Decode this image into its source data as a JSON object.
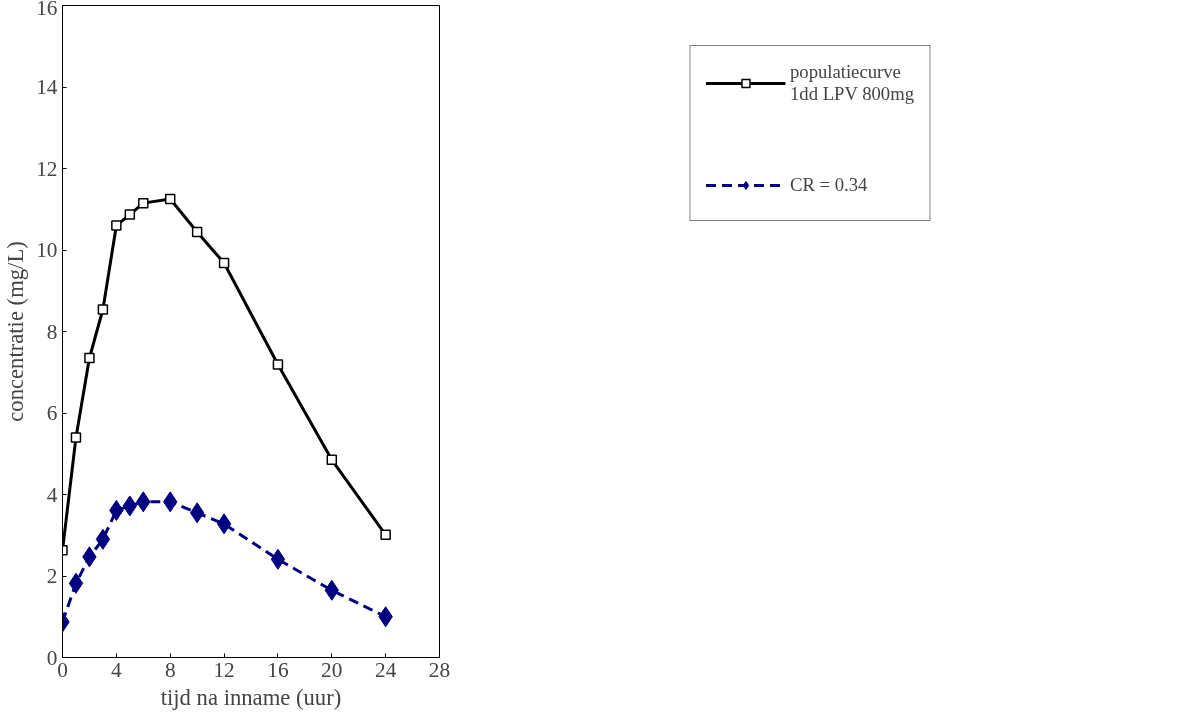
{
  "chart_data": {
    "type": "line",
    "xlabel": "tijd na inname (uur)",
    "ylabel": "concentratie (mg/L)",
    "x": [
      0,
      1,
      2,
      3,
      4,
      5,
      6,
      8,
      10,
      12,
      16,
      20,
      24
    ],
    "series": [
      {
        "name": "populatiecurve\n1dd LPV 800mg",
        "color": "#000000",
        "marker": "square",
        "line_style": "solid",
        "values": [
          2.63,
          5.4,
          7.35,
          8.54,
          10.6,
          10.87,
          11.15,
          11.25,
          10.44,
          9.68,
          7.19,
          4.85,
          3.01
        ]
      },
      {
        "name": "CR = 0.34",
        "color": "#000080",
        "marker": "diamond",
        "line_style": "dashed",
        "values": [
          0.87,
          1.82,
          2.47,
          2.9,
          3.61,
          3.72,
          3.82,
          3.82,
          3.55,
          3.28,
          2.41,
          1.65,
          1.0
        ]
      }
    ],
    "xlim": [
      0,
      28
    ],
    "xticks": [
      0,
      4,
      8,
      12,
      16,
      20,
      24,
      28
    ],
    "ylim": [
      0,
      16
    ],
    "yticks": [
      0,
      2,
      4,
      6,
      8,
      10,
      12,
      14,
      16
    ],
    "grid": false,
    "legend": "right"
  }
}
